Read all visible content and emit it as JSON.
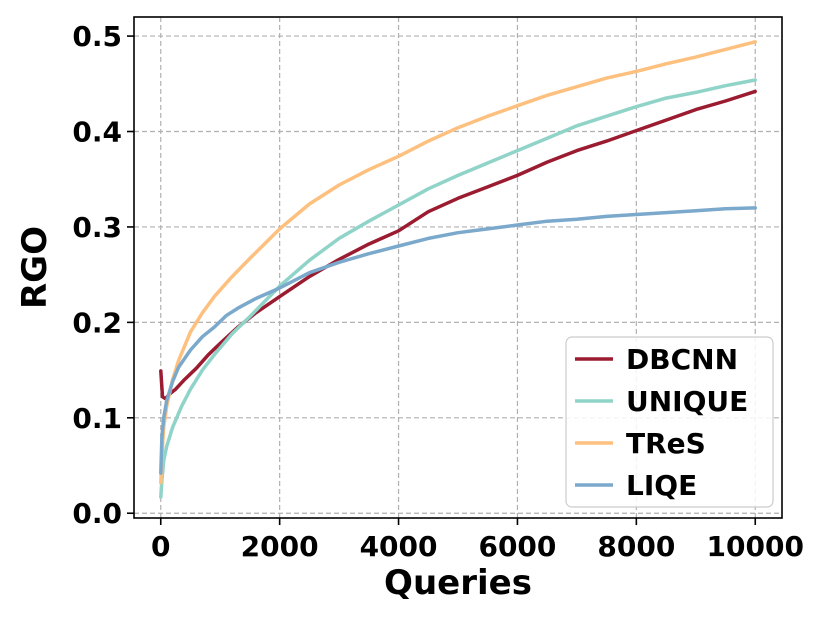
{
  "chart_data": {
    "type": "line",
    "title": "",
    "xlabel": "Queries",
    "ylabel": "RGO",
    "xlim": [
      -450,
      10450
    ],
    "ylim": [
      -0.005,
      0.52
    ],
    "xticks": [
      0,
      2000,
      4000,
      6000,
      8000,
      10000
    ],
    "xtick_labels": [
      "0",
      "2000",
      "4000",
      "6000",
      "8000",
      "10000"
    ],
    "yticks": [
      0.0,
      0.1,
      0.2,
      0.3,
      0.4,
      0.5
    ],
    "ytick_labels": [
      "0.0",
      "0.1",
      "0.2",
      "0.3",
      "0.4",
      "0.5"
    ],
    "grid": true,
    "legend_position": "bottom-right",
    "series": [
      {
        "name": "DBCNN",
        "color": "#9b1b30",
        "x": [
          0,
          30,
          80,
          150,
          250,
          400,
          600,
          800,
          1000,
          1300,
          1600,
          2000,
          2500,
          3000,
          3500,
          4000,
          4500,
          5000,
          5500,
          6000,
          6500,
          7000,
          7500,
          8000,
          8500,
          9000,
          9500,
          10000
        ],
        "y": [
          0.149,
          0.122,
          0.12,
          0.125,
          0.13,
          0.14,
          0.152,
          0.166,
          0.178,
          0.195,
          0.21,
          0.227,
          0.248,
          0.266,
          0.282,
          0.296,
          0.316,
          0.33,
          0.342,
          0.354,
          0.368,
          0.38,
          0.39,
          0.401,
          0.412,
          0.423,
          0.432,
          0.442
        ]
      },
      {
        "name": "UNIQUE",
        "color": "#8fd3c9",
        "x": [
          0,
          20,
          50,
          100,
          200,
          350,
          500,
          700,
          900,
          1200,
          1500,
          2000,
          2500,
          3000,
          3500,
          4000,
          4500,
          5000,
          5500,
          6000,
          6500,
          7000,
          7500,
          8000,
          8500,
          9000,
          9500,
          10000
        ],
        "y": [
          0.017,
          0.035,
          0.055,
          0.07,
          0.09,
          0.112,
          0.13,
          0.15,
          0.166,
          0.188,
          0.206,
          0.238,
          0.265,
          0.288,
          0.306,
          0.323,
          0.34,
          0.354,
          0.367,
          0.38,
          0.393,
          0.406,
          0.416,
          0.426,
          0.435,
          0.441,
          0.448,
          0.454
        ]
      },
      {
        "name": "TReS",
        "color": "#fdc07e",
        "x": [
          0,
          20,
          50,
          100,
          200,
          300,
          500,
          700,
          900,
          1200,
          1500,
          2000,
          2500,
          3000,
          3500,
          4000,
          4500,
          5000,
          5500,
          6000,
          6500,
          7000,
          7500,
          8000,
          8500,
          9000,
          9500,
          10000
        ],
        "y": [
          0.032,
          0.06,
          0.09,
          0.112,
          0.14,
          0.16,
          0.19,
          0.21,
          0.227,
          0.248,
          0.267,
          0.298,
          0.324,
          0.344,
          0.36,
          0.374,
          0.39,
          0.404,
          0.416,
          0.427,
          0.438,
          0.447,
          0.456,
          0.463,
          0.471,
          0.478,
          0.486,
          0.494
        ]
      },
      {
        "name": "LIQE",
        "color": "#7aa9cb",
        "x": [
          0,
          20,
          50,
          100,
          200,
          300,
          500,
          700,
          900,
          1100,
          1300,
          1600,
          2000,
          2500,
          3000,
          3500,
          4000,
          4500,
          5000,
          5500,
          6000,
          6500,
          7000,
          7500,
          8000,
          8500,
          9000,
          9500,
          10000
        ],
        "y": [
          0.042,
          0.08,
          0.1,
          0.118,
          0.138,
          0.153,
          0.171,
          0.185,
          0.195,
          0.207,
          0.215,
          0.225,
          0.236,
          0.252,
          0.263,
          0.272,
          0.28,
          0.288,
          0.294,
          0.298,
          0.302,
          0.306,
          0.308,
          0.311,
          0.313,
          0.315,
          0.317,
          0.319,
          0.32
        ]
      }
    ]
  }
}
